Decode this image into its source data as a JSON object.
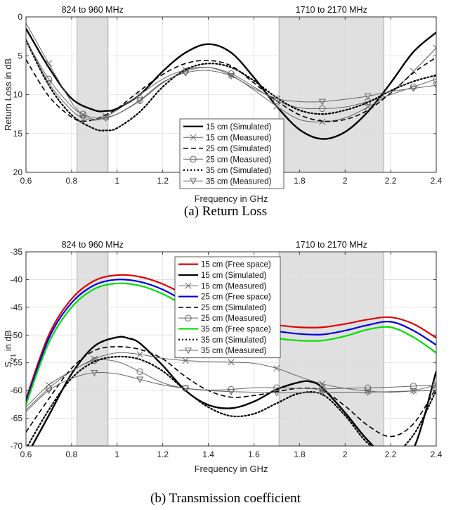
{
  "chart_data": [
    {
      "type": "line",
      "caption": "(a)    Return Loss",
      "xlabel": "Frequency in GHz",
      "ylabel": "Return Loss in dB",
      "xlim": [
        0.6,
        2.4
      ],
      "ylim": [
        0,
        20
      ],
      "y_reversed": true,
      "xticks": [
        0.6,
        0.8,
        1,
        1.2,
        1.4,
        1.6,
        1.8,
        2,
        2.2,
        2.4
      ],
      "xtick_labels": [
        "0.6",
        "0.8",
        "1",
        "1.2",
        "1.4",
        "1.6",
        "1.8",
        "2",
        "2.2",
        "2.4"
      ],
      "yticks": [
        0,
        5,
        10,
        15,
        20
      ],
      "ytick_labels": [
        "0",
        "5",
        "10",
        "15",
        "20"
      ],
      "grid": true,
      "legend_position": "lower-center",
      "bands": [
        {
          "from": 0.824,
          "to": 0.96,
          "label": "824 to 960 MHz"
        },
        {
          "from": 1.71,
          "to": 2.17,
          "label": "1710 to 2170 MHz"
        }
      ],
      "series": [
        {
          "name": "15 cm (Simulated)",
          "color": "#000000",
          "style": "solid",
          "width": 2.4,
          "marker": "none",
          "x": [
            0.6,
            0.7,
            0.8,
            0.9,
            0.95,
            1.0,
            1.1,
            1.2,
            1.3,
            1.4,
            1.5,
            1.6,
            1.7,
            1.8,
            1.9,
            2.0,
            2.1,
            2.2,
            2.3,
            2.4
          ],
          "y": [
            1.5,
            6.5,
            10.5,
            12.0,
            12.1,
            11.8,
            10.0,
            7.0,
            4.6,
            3.5,
            4.6,
            7.8,
            11.5,
            14.5,
            15.7,
            14.8,
            12.2,
            8.5,
            4.5,
            2.0
          ]
        },
        {
          "name": "15 cm (Measured)",
          "color": "#666666",
          "style": "solid",
          "width": 1.0,
          "marker": "x",
          "x": [
            0.6,
            0.7,
            0.8,
            0.85,
            0.9,
            0.95,
            1.0,
            1.1,
            1.2,
            1.3,
            1.4,
            1.5,
            1.6,
            1.7,
            1.8,
            1.9,
            2.0,
            2.1,
            2.2,
            2.3,
            2.4
          ],
          "y": [
            0.8,
            6.0,
            11.0,
            12.6,
            13.2,
            12.8,
            12.0,
            10.0,
            8.0,
            6.8,
            6.5,
            7.5,
            9.4,
            11.5,
            13.2,
            13.5,
            13.0,
            11.6,
            9.8,
            7.0,
            4.0
          ]
        },
        {
          "name": "25 cm (Simulated)",
          "color": "#000000",
          "style": "dashed",
          "width": 1.6,
          "marker": "none",
          "x": [
            0.6,
            0.7,
            0.8,
            0.85,
            0.9,
            0.95,
            1.0,
            1.1,
            1.2,
            1.3,
            1.4,
            1.5,
            1.6,
            1.7,
            1.8,
            1.9,
            2.0,
            2.1,
            2.2,
            2.3,
            2.4
          ],
          "y": [
            5.5,
            10.2,
            12.9,
            13.4,
            13.2,
            12.6,
            11.8,
            9.5,
            7.4,
            6.0,
            5.6,
            6.3,
            8.5,
            10.8,
            12.6,
            13.4,
            13.2,
            12.0,
            9.8,
            7.2,
            5.2
          ]
        },
        {
          "name": "25 cm (Measured)",
          "color": "#666666",
          "style": "solid",
          "width": 1.0,
          "marker": "circle",
          "x": [
            0.6,
            0.7,
            0.8,
            0.85,
            0.9,
            0.95,
            1.0,
            1.1,
            1.2,
            1.3,
            1.4,
            1.5,
            1.6,
            1.7,
            1.8,
            1.9,
            2.0,
            2.1,
            2.2,
            2.3,
            2.4
          ],
          "y": [
            3.0,
            8.0,
            11.5,
            12.5,
            13.0,
            12.9,
            12.5,
            10.8,
            8.5,
            7.0,
            6.5,
            7.3,
            9.0,
            10.8,
            11.7,
            11.8,
            11.6,
            10.9,
            10.0,
            9.0,
            8.0
          ]
        },
        {
          "name": "35 cm (Simulated)",
          "color": "#000000",
          "style": "dotted",
          "width": 2.2,
          "marker": "none",
          "x": [
            0.6,
            0.7,
            0.8,
            0.9,
            0.95,
            1.0,
            1.1,
            1.2,
            1.3,
            1.4,
            1.5,
            1.6,
            1.7,
            1.8,
            1.9,
            2.0,
            2.1,
            2.2,
            2.3,
            2.4
          ],
          "y": [
            3.0,
            8.8,
            12.6,
            14.4,
            14.6,
            14.3,
            12.2,
            9.0,
            6.8,
            6.0,
            6.5,
            8.2,
            10.4,
            12.0,
            12.5,
            12.0,
            11.0,
            9.5,
            8.3,
            7.5
          ]
        },
        {
          "name": "35 cm (Measured)",
          "color": "#666666",
          "style": "solid",
          "width": 1.0,
          "marker": "triangle-down",
          "x": [
            0.6,
            0.7,
            0.8,
            0.85,
            0.9,
            0.95,
            1.0,
            1.1,
            1.2,
            1.3,
            1.4,
            1.5,
            1.6,
            1.7,
            1.8,
            1.9,
            2.0,
            2.1,
            2.2,
            2.3,
            2.4
          ],
          "y": [
            2.8,
            8.5,
            12.0,
            13.0,
            13.3,
            13.0,
            12.5,
            10.7,
            8.4,
            7.2,
            6.9,
            7.6,
            9.2,
            10.5,
            10.9,
            10.9,
            10.6,
            10.2,
            9.6,
            9.2,
            8.8
          ]
        }
      ]
    },
    {
      "type": "line",
      "caption": "(b)    Transmission coefficient",
      "xlabel": "Frequency in GHz",
      "ylabel": "S21 in dB",
      "xlim": [
        0.6,
        2.4
      ],
      "ylim": [
        -70,
        -35
      ],
      "y_reversed": false,
      "xticks": [
        0.6,
        0.8,
        1,
        1.2,
        1.4,
        1.6,
        1.8,
        2,
        2.2,
        2.4
      ],
      "xtick_labels": [
        "0.6",
        "0.8",
        "1",
        "1.2",
        "1.4",
        "1.6",
        "1.8",
        "2",
        "2.2",
        "2.4"
      ],
      "yticks": [
        -70,
        -65,
        -60,
        -55,
        -50,
        -45,
        -40,
        -35
      ],
      "ytick_labels": [
        "-70",
        "-65",
        "-60",
        "-55",
        "-50",
        "-45",
        "-40",
        "-35"
      ],
      "grid": true,
      "legend_position": "top-center",
      "bands": [
        {
          "from": 0.824,
          "to": 0.96,
          "label": "824 to 960 MHz"
        },
        {
          "from": 1.71,
          "to": 2.17,
          "label": "1710 to 2170 MHz"
        }
      ],
      "series": [
        {
          "name": "15 cm (Free space)",
          "color": "#e00000",
          "style": "solid",
          "width": 2.2,
          "marker": "none",
          "x": [
            0.6,
            0.7,
            0.8,
            0.9,
            1.0,
            1.1,
            1.2,
            1.3,
            1.4,
            1.5,
            1.6,
            1.7,
            1.8,
            1.9,
            2.0,
            2.1,
            2.2,
            2.3,
            2.4
          ],
          "y": [
            -61.5,
            -50.0,
            -43.5,
            -40.2,
            -39.2,
            -39.5,
            -40.8,
            -42.8,
            -44.8,
            -46.5,
            -47.6,
            -48.2,
            -48.6,
            -48.6,
            -48.0,
            -47.2,
            -46.8,
            -48.0,
            -50.5
          ]
        },
        {
          "name": "15 cm (Simulated)",
          "color": "#000000",
          "style": "solid",
          "width": 2.4,
          "marker": "none",
          "x": [
            0.6,
            0.7,
            0.8,
            0.9,
            1.0,
            1.05,
            1.1,
            1.2,
            1.3,
            1.4,
            1.5,
            1.6,
            1.7,
            1.8,
            1.85,
            1.9,
            2.0,
            2.1,
            2.2,
            2.3,
            2.4
          ],
          "y": [
            -72.0,
            -64.5,
            -57.0,
            -52.0,
            -50.4,
            -50.6,
            -51.5,
            -55.5,
            -60.0,
            -62.6,
            -63.2,
            -62.0,
            -59.8,
            -58.5,
            -58.4,
            -59.5,
            -64.0,
            -69.0,
            -72.5,
            -70.5,
            -56.5
          ]
        },
        {
          "name": "15 cm (Measured)",
          "color": "#666666",
          "style": "solid",
          "width": 1.0,
          "marker": "x",
          "x": [
            0.6,
            0.7,
            0.8,
            0.9,
            1.0,
            1.1,
            1.2,
            1.3,
            1.4,
            1.5,
            1.6,
            1.7,
            1.8,
            1.9,
            2.0,
            2.1,
            2.2,
            2.3,
            2.4
          ],
          "y": [
            -63.0,
            -59.0,
            -56.5,
            -54.3,
            -53.2,
            -53.5,
            -54.2,
            -54.6,
            -54.8,
            -54.9,
            -55.1,
            -56.0,
            -57.5,
            -58.8,
            -59.6,
            -60.1,
            -60.3,
            -60.0,
            -59.0
          ]
        },
        {
          "name": "25 cm (Free space)",
          "color": "#0000e0",
          "style": "solid",
          "width": 2.2,
          "marker": "none",
          "x": [
            0.6,
            0.7,
            0.8,
            0.9,
            1.0,
            1.1,
            1.2,
            1.3,
            1.4,
            1.5,
            1.6,
            1.7,
            1.8,
            1.9,
            2.0,
            2.1,
            2.2,
            2.3,
            2.4
          ],
          "y": [
            -62.0,
            -50.6,
            -44.2,
            -41.0,
            -40.0,
            -40.4,
            -41.8,
            -44.0,
            -46.0,
            -47.5,
            -48.6,
            -49.3,
            -49.8,
            -49.9,
            -49.2,
            -48.2,
            -47.6,
            -49.2,
            -51.8
          ]
        },
        {
          "name": "25 cm (Simulated)",
          "color": "#000000",
          "style": "dashed",
          "width": 1.6,
          "marker": "none",
          "x": [
            0.6,
            0.7,
            0.8,
            0.9,
            1.0,
            1.1,
            1.2,
            1.3,
            1.4,
            1.5,
            1.6,
            1.7,
            1.8,
            1.9,
            2.0,
            2.1,
            2.2,
            2.3,
            2.4
          ],
          "y": [
            -67.5,
            -61.5,
            -56.0,
            -52.8,
            -52.1,
            -52.6,
            -54.3,
            -57.5,
            -60.0,
            -61.2,
            -60.9,
            -60.2,
            -59.6,
            -60.0,
            -62.8,
            -66.3,
            -68.3,
            -66.0,
            -59.5
          ]
        },
        {
          "name": "25 cm (Measured)",
          "color": "#666666",
          "style": "solid",
          "width": 1.0,
          "marker": "circle",
          "x": [
            0.6,
            0.7,
            0.8,
            0.9,
            1.0,
            1.1,
            1.2,
            1.3,
            1.4,
            1.5,
            1.6,
            1.7,
            1.8,
            1.9,
            2.0,
            2.1,
            2.2,
            2.3,
            2.4
          ],
          "y": [
            -63.5,
            -59.6,
            -56.5,
            -54.6,
            -54.8,
            -56.6,
            -58.6,
            -59.6,
            -59.9,
            -59.8,
            -59.5,
            -59.5,
            -59.6,
            -59.7,
            -59.6,
            -59.5,
            -59.4,
            -59.2,
            -59.0
          ]
        },
        {
          "name": "35 cm (Free space)",
          "color": "#00dd00",
          "style": "solid",
          "width": 2.2,
          "marker": "none",
          "x": [
            0.6,
            0.7,
            0.8,
            0.9,
            1.0,
            1.1,
            1.2,
            1.3,
            1.4,
            1.5,
            1.6,
            1.7,
            1.8,
            1.9,
            2.0,
            2.1,
            2.2,
            2.3,
            2.4
          ],
          "y": [
            -62.5,
            -51.4,
            -45.0,
            -41.7,
            -40.7,
            -41.1,
            -42.6,
            -44.8,
            -47.0,
            -48.6,
            -49.8,
            -50.6,
            -51.0,
            -51.0,
            -50.2,
            -49.0,
            -48.6,
            -50.4,
            -53.2
          ]
        },
        {
          "name": "35 cm (Simulated)",
          "color": "#000000",
          "style": "dotted",
          "width": 2.2,
          "marker": "none",
          "x": [
            0.6,
            0.7,
            0.8,
            0.9,
            1.0,
            1.1,
            1.2,
            1.3,
            1.4,
            1.5,
            1.6,
            1.7,
            1.8,
            1.9,
            2.0,
            2.1,
            2.2,
            2.3,
            2.4
          ],
          "y": [
            -70.5,
            -63.5,
            -57.8,
            -54.8,
            -53.9,
            -54.4,
            -56.5,
            -60.0,
            -63.0,
            -64.6,
            -64.2,
            -62.3,
            -60.5,
            -60.7,
            -64.5,
            -69.5,
            -71.5,
            -68.0,
            -60.0
          ]
        },
        {
          "name": "35 cm (Measured)",
          "color": "#666666",
          "style": "solid",
          "width": 1.0,
          "marker": "triangle-down",
          "x": [
            0.6,
            0.7,
            0.8,
            0.9,
            1.0,
            1.1,
            1.2,
            1.3,
            1.4,
            1.5,
            1.6,
            1.7,
            1.8,
            1.9,
            2.0,
            2.1,
            2.2,
            2.3,
            2.4
          ],
          "y": [
            -63.8,
            -60.0,
            -57.8,
            -56.8,
            -57.0,
            -58.0,
            -59.0,
            -59.6,
            -60.0,
            -60.2,
            -60.3,
            -60.4,
            -60.4,
            -60.4,
            -60.3,
            -60.3,
            -60.2,
            -60.1,
            -60.0
          ]
        }
      ]
    }
  ]
}
